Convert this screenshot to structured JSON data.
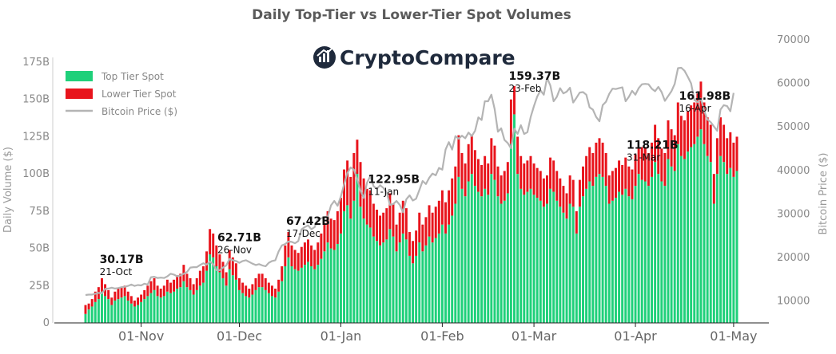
{
  "colors": {
    "top_tier": "#1fd07a",
    "lower_tier": "#e8141c",
    "price": "#b4b4b4",
    "axis": "#222222"
  },
  "chart_data": {
    "type": "bar",
    "title": "Daily Top-Tier vs Lower-Tier Spot Volumes",
    "brand": "CryptoCompare",
    "brand_icon": "trend-chart-icon",
    "ylabel": "Daily Volume ($)",
    "y2label": "Bitcoin Price ($)",
    "ylim": [
      0,
      190
    ],
    "y2lim": [
      5000,
      70000
    ],
    "y_ticks": [
      "0",
      "25B",
      "50B",
      "75B",
      "100B",
      "125B",
      "150B",
      "175B"
    ],
    "y_tick_values": [
      0,
      25,
      50,
      75,
      100,
      125,
      150,
      175
    ],
    "y2_ticks": [
      "10000",
      "20000",
      "30000",
      "40000",
      "50000",
      "60000",
      "70000"
    ],
    "y2_tick_values": [
      10000,
      20000,
      30000,
      40000,
      50000,
      60000,
      70000
    ],
    "x_ticks": [
      {
        "label": "01-Nov",
        "date": "2020-11-01"
      },
      {
        "label": "01-Dec",
        "date": "2020-12-01"
      },
      {
        "label": "01-Jan",
        "date": "2021-01-01"
      },
      {
        "label": "01-Feb",
        "date": "2021-02-01"
      },
      {
        "label": "01-Mar",
        "date": "2021-03-01"
      },
      {
        "label": "01-Apr",
        "date": "2021-04-01"
      },
      {
        "label": "01-May",
        "date": "2021-05-01"
      }
    ],
    "legend": {
      "position": "top-left",
      "items": [
        {
          "label": "Top Tier Spot",
          "kind": "box",
          "color": "#1fd07a"
        },
        {
          "label": "Lower Tier Spot",
          "kind": "box",
          "color": "#e8141c"
        },
        {
          "label": "Bitcoin Price ($)",
          "kind": "line",
          "color": "#b4b4b4"
        }
      ]
    },
    "annotations": [
      {
        "value": "30.17B",
        "date": "21-Oct",
        "at": "2020-10-21"
      },
      {
        "value": "62.71B",
        "date": "26-Nov",
        "at": "2020-11-26"
      },
      {
        "value": "67.42B",
        "date": "17-Dec",
        "at": "2020-12-17"
      },
      {
        "value": "122.95B",
        "date": "11-Jan",
        "at": "2021-01-11"
      },
      {
        "value": "159.37B",
        "date": "23-Feb",
        "at": "2021-02-23"
      },
      {
        "value": "118.21B",
        "date": "31-Mar",
        "at": "2021-03-31"
      },
      {
        "value": "161.98B",
        "date": "16-Apr",
        "at": "2021-04-16"
      }
    ],
    "start_date": "2020-10-15",
    "series": [
      {
        "name": "Top Tier Spot",
        "values": [
          6,
          9,
          11,
          14,
          16,
          21,
          18,
          16,
          12,
          15,
          16,
          17,
          18,
          15,
          13,
          11,
          12,
          14,
          16,
          18,
          20,
          22,
          18,
          17,
          18,
          21,
          20,
          21,
          23,
          24,
          28,
          24,
          22,
          19,
          22,
          25,
          27,
          35,
          46,
          44,
          38,
          34,
          30,
          25,
          36,
          32,
          29,
          22,
          20,
          18,
          17,
          19,
          22,
          24,
          24,
          22,
          20,
          18,
          17,
          21,
          28,
          38,
          44,
          38,
          36,
          35,
          37,
          39,
          41,
          38,
          36,
          39,
          43,
          48,
          54,
          50,
          49,
          53,
          60,
          75,
          79,
          70,
          82,
          100,
          78,
          70,
          66,
          64,
          58,
          55,
          52,
          54,
          56,
          63,
          58,
          48,
          54,
          60,
          56,
          45,
          40,
          45,
          54,
          48,
          52,
          58,
          54,
          57,
          60,
          66,
          60,
          66,
          72,
          80,
          98,
          90,
          85,
          95,
          100,
          92,
          88,
          85,
          90,
          86,
          100,
          96,
          85,
          80,
          82,
          87,
          120,
          140,
          100,
          90,
          86,
          88,
          90,
          86,
          84,
          82,
          78,
          80,
          90,
          88,
          82,
          78,
          74,
          70,
          80,
          78,
          60,
          78,
          85,
          90,
          95,
          92,
          98,
          100,
          98,
          92,
          80,
          82,
          84,
          88,
          86,
          90,
          85,
          83,
          92,
          100,
          96,
          95,
          92,
          98,
          108,
          100,
          95,
          92,
          110,
          105,
          102,
          120,
          112,
          110,
          115,
          118,
          120,
          125,
          130,
          120,
          112,
          108,
          80,
          100,
          112,
          108,
          100,
          104,
          98,
          102
        ]
      },
      {
        "name": "Lower Tier Spot",
        "values": [
          6,
          4,
          5,
          7,
          8,
          9,
          8,
          6,
          5,
          6,
          7,
          7,
          7,
          6,
          5,
          4,
          5,
          5,
          6,
          7,
          8,
          8,
          7,
          6,
          7,
          8,
          7,
          8,
          9,
          9,
          11,
          9,
          8,
          7,
          8,
          10,
          11,
          13,
          17,
          16,
          14,
          12,
          11,
          9,
          13,
          12,
          11,
          8,
          7,
          7,
          6,
          7,
          8,
          9,
          9,
          8,
          7,
          7,
          6,
          8,
          10,
          14,
          17,
          14,
          13,
          12,
          14,
          15,
          15,
          14,
          13,
          15,
          17,
          19,
          21,
          20,
          20,
          22,
          24,
          28,
          30,
          28,
          32,
          23,
          30,
          27,
          24,
          25,
          22,
          21,
          20,
          20,
          21,
          24,
          22,
          18,
          20,
          22,
          21,
          16,
          15,
          17,
          20,
          18,
          19,
          21,
          20,
          21,
          22,
          23,
          21,
          23,
          25,
          25,
          28,
          24,
          22,
          25,
          26,
          24,
          22,
          21,
          22,
          21,
          24,
          23,
          20,
          19,
          20,
          21,
          30,
          19,
          25,
          22,
          21,
          21,
          22,
          21,
          20,
          20,
          19,
          19,
          21,
          21,
          20,
          19,
          18,
          17,
          19,
          18,
          15,
          18,
          20,
          22,
          23,
          22,
          23,
          24,
          23,
          22,
          19,
          20,
          20,
          21,
          20,
          21,
          20,
          20,
          21,
          18,
          22,
          23,
          22,
          23,
          25,
          24,
          22,
          22,
          26,
          25,
          24,
          28,
          27,
          26,
          27,
          28,
          28,
          29,
          32,
          28,
          26,
          25,
          20,
          24,
          26,
          25,
          24,
          24,
          23,
          23
        ]
      },
      {
        "name": "Bitcoin Price ($)",
        "values": [
          11400,
          11500,
          11500,
          11700,
          11900,
          11800,
          12800,
          12900,
          13100,
          12900,
          13000,
          13200,
          13300,
          13500,
          13800,
          13500,
          13700,
          13600,
          14000,
          13800,
          15500,
          15600,
          15300,
          15400,
          15300,
          15700,
          16300,
          16100,
          15700,
          15900,
          16300,
          16700,
          17700,
          17800,
          17800,
          18300,
          18700,
          18400,
          19100,
          18500,
          17100,
          17100,
          17700,
          18200,
          19700,
          19400,
          19200,
          18800,
          19200,
          19400,
          19000,
          18600,
          18300,
          18500,
          18200,
          18000,
          18800,
          19200,
          19400,
          21400,
          22800,
          23100,
          23700,
          23600,
          23300,
          23800,
          26500,
          27000,
          27400,
          26500,
          27000,
          28900,
          29000,
          29300,
          29400,
          32000,
          33000,
          31900,
          34000,
          36800,
          39400,
          40700,
          40200,
          38100,
          35400,
          33700,
          37200,
          38700,
          36400,
          35800,
          36600,
          36000,
          35000,
          32100,
          32300,
          33000,
          32100,
          30400,
          33400,
          34300,
          33100,
          33500,
          35500,
          37600,
          36900,
          38300,
          39300,
          38900,
          40600,
          40200,
          44800,
          46500,
          44800,
          47900,
          47300,
          48000,
          47400,
          48700,
          47900,
          49100,
          52200,
          51600,
          55900,
          55900,
          57400,
          54100,
          48900,
          49700,
          47000,
          46300,
          45100,
          49600,
          48400,
          50400,
          48400,
          48800,
          52300,
          54800,
          57000,
          58400,
          57400,
          61300,
          59500,
          55900,
          56900,
          58900,
          57700,
          58100,
          59000,
          55600,
          56700,
          57900,
          58000,
          57400,
          54500,
          54000,
          52300,
          51300,
          55000,
          55800,
          57600,
          58800,
          58700,
          58900,
          59100,
          55900,
          56900,
          58300,
          57400,
          58900,
          59800,
          59900,
          59800,
          58800,
          58200,
          59200,
          58000,
          56000,
          57100,
          58200,
          59900,
          63500,
          63600,
          62900,
          61500,
          60000,
          56200,
          55700,
          56500,
          53800,
          51700,
          51100,
          50100,
          49100,
          54000,
          55000,
          54800,
          53600,
          57800
        ]
      }
    ]
  }
}
